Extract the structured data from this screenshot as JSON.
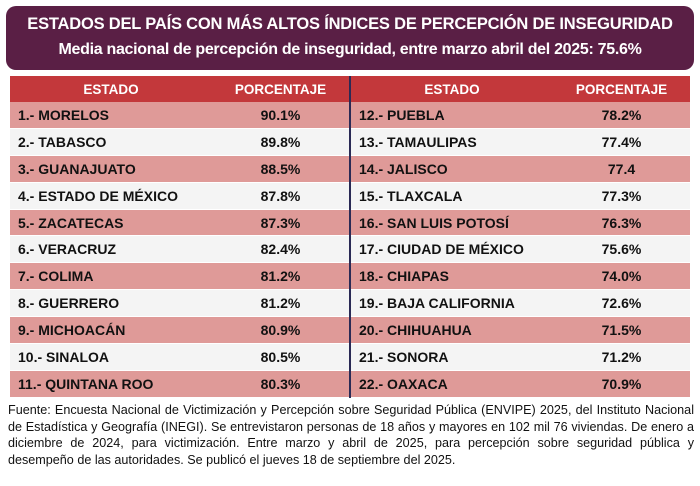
{
  "header": {
    "title": "ESTADOS DEL PAÍS CON MÁS ALTOS ÍNDICES DE PERCEPCIÓN DE INSEGURIDAD",
    "subtitle": "Media nacional de percepción de inseguridad, entre marzo abril del 2025: 75.6%"
  },
  "colors": {
    "header_bg": "#5a1f45",
    "header_row": "#c3383b",
    "odd_row": "#df9a98",
    "even_row": "#f4f4f4"
  },
  "chart_data": {
    "type": "table",
    "columns": [
      "ESTADO",
      "PORCENTAJE"
    ],
    "left": [
      {
        "estado": "1.- MORELOS",
        "porcentaje": "90.1%"
      },
      {
        "estado": "2.- TABASCO",
        "porcentaje": "89.8%"
      },
      {
        "estado": "3.- GUANAJUATO",
        "porcentaje": "88.5%"
      },
      {
        "estado": "4.- ESTADO DE MÉXICO",
        "porcentaje": "87.8%"
      },
      {
        "estado": "5.- ZACATECAS",
        "porcentaje": "87.3%"
      },
      {
        "estado": "6.- VERACRUZ",
        "porcentaje": "82.4%"
      },
      {
        "estado": "7.- COLIMA",
        "porcentaje": "81.2%"
      },
      {
        "estado": "8.- GUERRERO",
        "porcentaje": "81.2%"
      },
      {
        "estado": "9.- MICHOACÁN",
        "porcentaje": "80.9%"
      },
      {
        "estado": "10.- SINALOA",
        "porcentaje": "80.5%"
      },
      {
        "estado": "11.- QUINTANA ROO",
        "porcentaje": "80.3%"
      }
    ],
    "right": [
      {
        "estado": "12.- PUEBLA",
        "porcentaje": "78.2%"
      },
      {
        "estado": "13.- TAMAULIPAS",
        "porcentaje": "77.4%"
      },
      {
        "estado": "14.- JALISCO",
        "porcentaje": "77.4"
      },
      {
        "estado": "15.- TLAXCALA",
        "porcentaje": "77.3%"
      },
      {
        "estado": "16.- SAN LUIS POTOSÍ",
        "porcentaje": "76.3%"
      },
      {
        "estado": "17.- CIUDAD DE MÉXICO",
        "porcentaje": "75.6%"
      },
      {
        "estado": "18.- CHIAPAS",
        "porcentaje": "74.0%"
      },
      {
        "estado": "19.- BAJA CALIFORNIA",
        "porcentaje": "72.6%"
      },
      {
        "estado": "20.- CHIHUAHUA",
        "porcentaje": "71.5%"
      },
      {
        "estado": "21.- SONORA",
        "porcentaje": "71.2%"
      },
      {
        "estado": "22.- OAXACA",
        "porcentaje": "70.9%"
      }
    ]
  },
  "footer": {
    "text": "Fuente: Encuesta Nacional de Victimización y Percepción sobre Seguridad Pública (ENVIPE) 2025, del Instituto Nacional de Estadística y Geografía (INEGI). Se entrevistaron personas de 18 años y mayores en 102 mil 76 viviendas. De enero a diciembre de 2024, para victimización. Entre marzo y abril de 2025, para percepción sobre seguridad pública y desempeño de las autoridades. Se publicó el jueves 18 de septiembre del 2025."
  }
}
